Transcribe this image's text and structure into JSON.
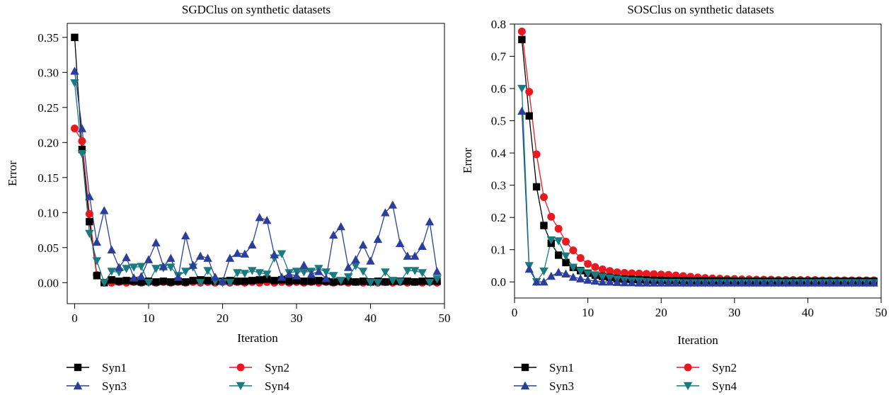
{
  "colors": {
    "Syn1": "#000000",
    "Syn2": "#e8191f",
    "Syn3": "#2b3e9b",
    "Syn4": "#197b80"
  },
  "markers": {
    "Syn1": "square",
    "Syn2": "circle",
    "Syn3": "triangle-up",
    "Syn4": "triangle-down"
  },
  "chart_data": [
    {
      "type": "line",
      "title": "SGDClus on synthetic datasets",
      "xlabel": "Iteration",
      "ylabel": "Error",
      "xlim": [
        -1,
        50
      ],
      "ylim": [
        -0.03,
        0.37
      ],
      "xticks": [
        0,
        10,
        20,
        30,
        40,
        50
      ],
      "yticks": [
        0.0,
        0.05,
        0.1,
        0.15,
        0.2,
        0.25,
        0.3,
        0.35
      ],
      "ytick_labels": [
        "0.00",
        "0.05",
        "0.10",
        "0.15",
        "0.20",
        "0.25",
        "0.30",
        "0.35"
      ],
      "legend_position": "bottom",
      "x": [
        0,
        1,
        2,
        3,
        4,
        5,
        6,
        7,
        8,
        9,
        10,
        11,
        12,
        13,
        14,
        15,
        16,
        17,
        18,
        19,
        20,
        21,
        22,
        23,
        24,
        25,
        26,
        27,
        28,
        29,
        30,
        31,
        32,
        33,
        34,
        35,
        36,
        37,
        38,
        39,
        40,
        41,
        42,
        43,
        44,
        45,
        46,
        47,
        48,
        49
      ],
      "series": [
        {
          "name": "Syn1",
          "values": [
            0.35,
            0.19,
            0.087,
            0.01,
            0.0,
            0.004,
            0.002,
            0.003,
            0.002,
            0.001,
            0.002,
            0.001,
            0.002,
            0.001,
            0.002,
            0.001,
            0.003,
            0.004,
            0.003,
            0.002,
            0.002,
            0.003,
            0.002,
            0.002,
            0.003,
            0.004,
            0.005,
            0.003,
            0.004,
            0.002,
            0.003,
            0.002,
            0.002,
            0.003,
            0.002,
            0.001,
            0.002,
            0.002,
            0.001,
            0.002,
            0.001,
            0.002,
            0.001,
            0.002,
            0.002,
            0.002,
            0.001,
            0.002,
            0.002,
            0.002
          ]
        },
        {
          "name": "Syn2",
          "values": [
            0.22,
            0.202,
            0.098,
            0.011,
            0.0,
            0.0,
            0.001,
            0.0,
            0.001,
            0.0,
            0.001,
            0.0,
            0.001,
            0.0,
            0.001,
            0.0,
            0.001,
            0.0,
            0.001,
            0.0,
            0.001,
            0.0,
            0.001,
            0.0,
            0.001,
            0.0,
            0.001,
            0.0,
            0.001,
            0.0,
            0.001,
            0.0,
            0.001,
            0.0,
            0.001,
            0.0,
            0.001,
            0.0,
            0.001,
            0.0,
            0.001,
            0.0,
            0.001,
            0.0,
            0.001,
            0.0,
            0.001,
            0.0,
            0.001,
            0.0
          ]
        },
        {
          "name": "Syn3",
          "values": [
            0.302,
            0.22,
            0.123,
            0.058,
            0.103,
            0.047,
            0.022,
            0.036,
            0.007,
            0.009,
            0.033,
            0.057,
            0.023,
            0.035,
            0.008,
            0.067,
            0.025,
            0.038,
            0.035,
            0.008,
            0.002,
            0.035,
            0.042,
            0.041,
            0.054,
            0.093,
            0.089,
            0.04,
            0.008,
            0.012,
            0.01,
            0.025,
            0.012,
            0.016,
            0.006,
            0.068,
            0.08,
            0.022,
            0.033,
            0.054,
            0.031,
            0.062,
            0.1,
            0.111,
            0.056,
            0.038,
            0.038,
            0.052,
            0.087,
            0.016
          ]
        },
        {
          "name": "Syn4",
          "values": [
            0.285,
            0.184,
            0.07,
            0.031,
            0.0,
            0.016,
            0.015,
            0.02,
            0.022,
            0.023,
            0.0,
            0.02,
            0.021,
            0.022,
            0.01,
            0.016,
            0.022,
            0.0,
            0.017,
            0.002,
            0.0,
            0.0,
            0.014,
            0.013,
            0.017,
            0.014,
            0.012,
            0.035,
            0.041,
            0.014,
            0.016,
            0.015,
            0.016,
            0.02,
            0.015,
            0.01,
            0.003,
            0.008,
            0.024,
            0.016,
            0.0,
            0.0,
            0.015,
            0.003,
            0.001,
            0.017,
            0.017,
            0.014,
            0.0,
            0.005
          ]
        }
      ]
    },
    {
      "type": "line",
      "title": "SOSClus on synthetic datasets",
      "xlabel": "Iteration",
      "ylabel": "Error",
      "xlim": [
        0,
        50
      ],
      "ylim": [
        -0.05,
        0.8
      ],
      "xticks": [
        0,
        10,
        20,
        30,
        40,
        50
      ],
      "yticks": [
        0.0,
        0.1,
        0.2,
        0.3,
        0.4,
        0.5,
        0.6,
        0.7,
        0.8
      ],
      "ytick_labels": [
        "0.0",
        "0.1",
        "0.2",
        "0.3",
        "0.4",
        "0.5",
        "0.6",
        "0.7",
        "0.8"
      ],
      "legend_position": "bottom",
      "x": [
        1,
        2,
        3,
        4,
        5,
        6,
        7,
        8,
        9,
        10,
        11,
        12,
        13,
        14,
        15,
        16,
        17,
        18,
        19,
        20,
        21,
        22,
        23,
        24,
        25,
        26,
        27,
        28,
        29,
        30,
        31,
        32,
        33,
        34,
        35,
        36,
        37,
        38,
        39,
        40,
        41,
        42,
        43,
        44,
        45,
        46,
        47,
        48,
        49
      ],
      "series": [
        {
          "name": "Syn1",
          "values": [
            0.752,
            0.515,
            0.295,
            0.175,
            0.12,
            0.083,
            0.06,
            0.045,
            0.035,
            0.027,
            0.021,
            0.017,
            0.014,
            0.011,
            0.009,
            0.008,
            0.007,
            0.006,
            0.005,
            0.005,
            0.004,
            0.004,
            0.004,
            0.003,
            0.003,
            0.003,
            0.003,
            0.003,
            0.003,
            0.002,
            0.002,
            0.002,
            0.002,
            0.002,
            0.002,
            0.002,
            0.002,
            0.002,
            0.002,
            0.002,
            0.002,
            0.002,
            0.002,
            0.002,
            0.002,
            0.002,
            0.002,
            0.002,
            0.002
          ]
        },
        {
          "name": "Syn2",
          "values": [
            0.777,
            0.59,
            0.396,
            0.263,
            0.202,
            0.165,
            0.125,
            0.098,
            0.074,
            0.056,
            0.046,
            0.039,
            0.034,
            0.03,
            0.028,
            0.027,
            0.026,
            0.025,
            0.024,
            0.023,
            0.022,
            0.02,
            0.018,
            0.016,
            0.014,
            0.012,
            0.011,
            0.01,
            0.009,
            0.009,
            0.008,
            0.008,
            0.007,
            0.007,
            0.007,
            0.006,
            0.006,
            0.006,
            0.006,
            0.006,
            0.006,
            0.005,
            0.005,
            0.005,
            0.005,
            0.005,
            0.005,
            0.005,
            0.005
          ]
        },
        {
          "name": "Syn3",
          "values": [
            0.53,
            0.04,
            0.0,
            0.0,
            0.018,
            0.03,
            0.025,
            0.015,
            0.01,
            0.006,
            0.003,
            0.0,
            0.0,
            -0.001,
            -0.002,
            -0.002,
            -0.003,
            -0.003,
            -0.003,
            -0.003,
            -0.003,
            -0.003,
            -0.003,
            -0.003,
            -0.003,
            -0.003,
            -0.003,
            -0.003,
            -0.003,
            -0.003,
            -0.003,
            -0.003,
            -0.003,
            -0.003,
            -0.003,
            -0.003,
            -0.003,
            -0.003,
            -0.003,
            -0.003,
            -0.003,
            -0.003,
            -0.003,
            -0.003,
            -0.003,
            -0.003,
            -0.003,
            -0.003,
            -0.003
          ]
        },
        {
          "name": "Syn4",
          "values": [
            0.6,
            0.05,
            0.0,
            0.033,
            0.13,
            0.127,
            0.08,
            0.045,
            0.033,
            0.025,
            0.02,
            0.015,
            0.012,
            0.008,
            0.005,
            0.003,
            0.002,
            0.0,
            -0.001,
            -0.002,
            -0.002,
            -0.002,
            -0.003,
            -0.003,
            -0.003,
            -0.003,
            -0.003,
            -0.003,
            -0.003,
            -0.003,
            -0.003,
            -0.003,
            -0.003,
            -0.003,
            -0.003,
            -0.003,
            -0.003,
            -0.003,
            -0.003,
            -0.003,
            -0.003,
            -0.003,
            -0.003,
            -0.003,
            -0.003,
            -0.003,
            -0.003,
            -0.003,
            -0.003
          ]
        }
      ]
    }
  ]
}
